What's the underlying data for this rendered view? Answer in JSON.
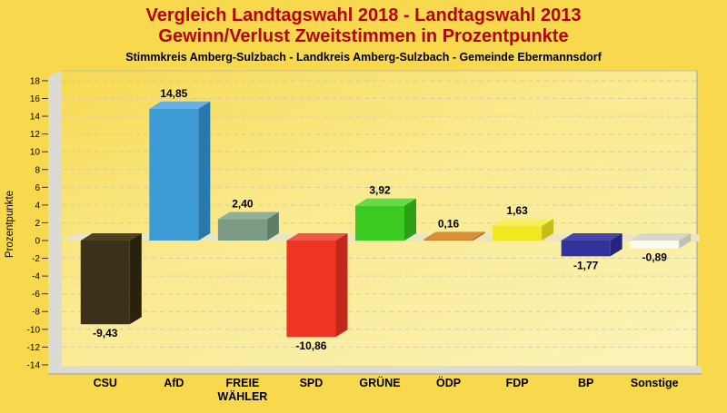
{
  "title": {
    "line1": "Vergleich Landtagswahl 2018 - Landtagswahl 2013",
    "line2": "Gewinn/Verlust Zweitstimmen in Prozentpunkte",
    "line3": "Stimmkreis Amberg-Sulzbach - Landkreis Amberg-Sulzbach - Gemeinde Ebermannsdorf"
  },
  "colors": {
    "page_background": "#F8D84C",
    "title_red": "#B40404",
    "subtitle_black": "#000000",
    "plot_gradient_top_left": "#F7DA50",
    "plot_gradient_mid": "#FAE98E",
    "plot_gradient_bottom_right": "#FBF2B4",
    "wall_gray": "#DBDBD3",
    "floor_gray": "#DCDCD4",
    "zero_band": "#EAE5C2",
    "gridline": "#CBC7B2"
  },
  "chart_data": {
    "type": "bar",
    "style": "3d-column",
    "title": "Vergleich Landtagswahl 2018 - Landtagswahl 2013",
    "subtitle": "Gewinn/Verlust Zweitstimmen in Prozentpunkte",
    "region_line": "Stimmkreis Amberg-Sulzbach - Landkreis Amberg-Sulzbach - Gemeinde Ebermannsdorf",
    "ylabel": "Prozentpunkte",
    "xlabel": "",
    "ylim": [
      -14,
      18
    ],
    "ytick_step": 2,
    "grid": "horizontal dashed",
    "legend": "none",
    "decimal_separator": "comma",
    "categories": [
      "CSU",
      "AfD",
      "FREIE WÄHLER",
      "SPD",
      "GRÜNE",
      "ÖDP",
      "FDP",
      "BP",
      "Sonstige"
    ],
    "category_label_lines": [
      [
        "CSU"
      ],
      [
        "AfD"
      ],
      [
        "FREIE",
        "WÄHLER"
      ],
      [
        "SPD"
      ],
      [
        "GRÜNE"
      ],
      [
        "ÖDP"
      ],
      [
        "FDP"
      ],
      [
        "BP"
      ],
      [
        "Sonstige"
      ]
    ],
    "values": [
      -9.43,
      14.85,
      2.4,
      -10.86,
      3.92,
      0.16,
      1.63,
      -1.77,
      -0.89
    ],
    "value_labels": [
      "-9,43",
      "14,85",
      "2,40",
      "-10,86",
      "3,92",
      "0,16",
      "1,63",
      "-1,77",
      "-0,89"
    ],
    "bar_colors": [
      {
        "party": "CSU",
        "front": "#3A3118",
        "top": "#4C4222",
        "side": "#28210E"
      },
      {
        "party": "AfD",
        "front": "#3D9BD5",
        "top": "#66B1E0",
        "side": "#2878AC"
      },
      {
        "party": "FREIE WÄHLER",
        "front": "#7B9A83",
        "top": "#92AF97",
        "side": "#5F7E67"
      },
      {
        "party": "SPD",
        "front": "#EE3523",
        "top": "#F25848",
        "side": "#C1271A"
      },
      {
        "party": "GRÜNE",
        "front": "#3BCB20",
        "top": "#63DC45",
        "side": "#2C9F16"
      },
      {
        "party": "ÖDP",
        "front": "#C9832C",
        "top": "#D69134",
        "side": "#A3671F"
      },
      {
        "party": "FDP",
        "front": "#F2E821",
        "top": "#F6F059",
        "side": "#C8BD17"
      },
      {
        "party": "BP",
        "front": "#32329B",
        "top": "#4646AC",
        "side": "#24247B"
      },
      {
        "party": "Sonstige",
        "front": "#FAFAF0",
        "top": "#D6D6CA",
        "side": "#BFBFB3"
      }
    ]
  }
}
